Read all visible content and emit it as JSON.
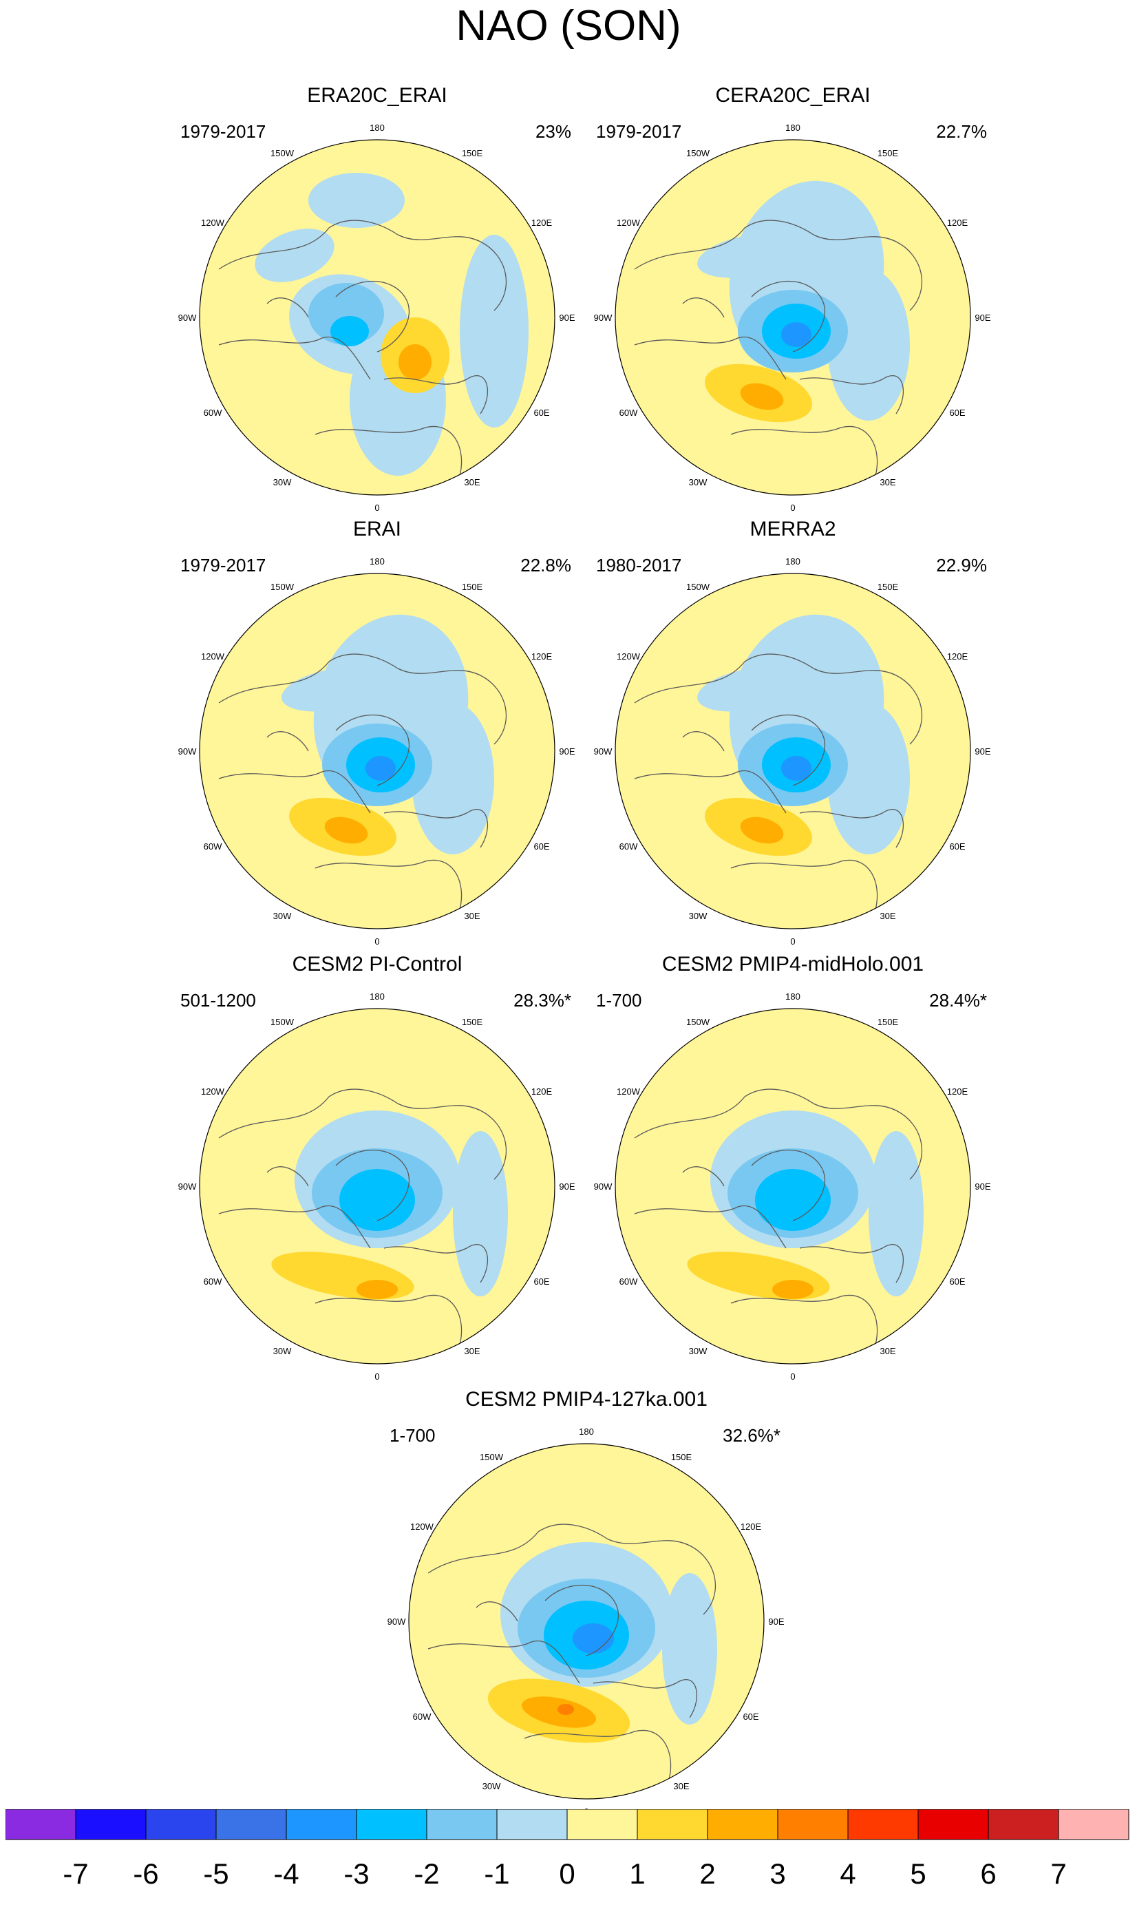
{
  "title": "NAO (SON)",
  "lon_labels": [
    "180",
    "150E",
    "120E",
    "90E",
    "60E",
    "30E",
    "0",
    "30W",
    "60W",
    "90W",
    "120W",
    "150W"
  ],
  "panels": [
    {
      "title": "ERA20C_ERAI",
      "period": "1979-2017",
      "variance": "23%",
      "pattern": "era20c"
    },
    {
      "title": "CERA20C_ERAI",
      "period": "1979-2017",
      "variance": "22.7%",
      "pattern": "reanalysis"
    },
    {
      "title": "ERAI",
      "period": "1979-2017",
      "variance": "22.8%",
      "pattern": "reanalysis"
    },
    {
      "title": "MERRA2",
      "period": "1980-2017",
      "variance": "22.9%",
      "pattern": "reanalysis"
    },
    {
      "title": "CESM2 PI-Control",
      "period": "501-1200",
      "variance": "28.3%*",
      "pattern": "model"
    },
    {
      "title": "CESM2 PMIP4-midHolo.001",
      "period": "1-700",
      "variance": "28.4%*",
      "pattern": "model"
    },
    {
      "title": "CESM2 PMIP4-127ka.001",
      "period": "1-700",
      "variance": "32.6%*",
      "pattern": "model_strong"
    }
  ],
  "colorbar": {
    "labels": [
      "-7",
      "-6",
      "-5",
      "-4",
      "-3",
      "-2",
      "-1",
      "0",
      "1",
      "2",
      "3",
      "4",
      "5",
      "6",
      "7"
    ],
    "colors": [
      "#8a2be2",
      "#1a0fff",
      "#2b45ee",
      "#3a72e8",
      "#1e96ff",
      "#00c0ff",
      "#79c8f2",
      "#b1dcf2",
      "#fff599",
      "#ffd830",
      "#ffad00",
      "#ff7f00",
      "#ff3a00",
      "#e80000",
      "#cc1f1f",
      "#ffb2b2"
    ]
  },
  "palette": {
    "land_line": "#5a5a5a",
    "yellow": "#fff599",
    "lightblue": "#b1dcf2",
    "blue1": "#79c8f2",
    "blue2": "#00c0ff",
    "blue3": "#1e96ff",
    "blue4": "#3a72e8",
    "orange1": "#ffd830",
    "orange2": "#ffad00",
    "orange3": "#ff7f00"
  }
}
